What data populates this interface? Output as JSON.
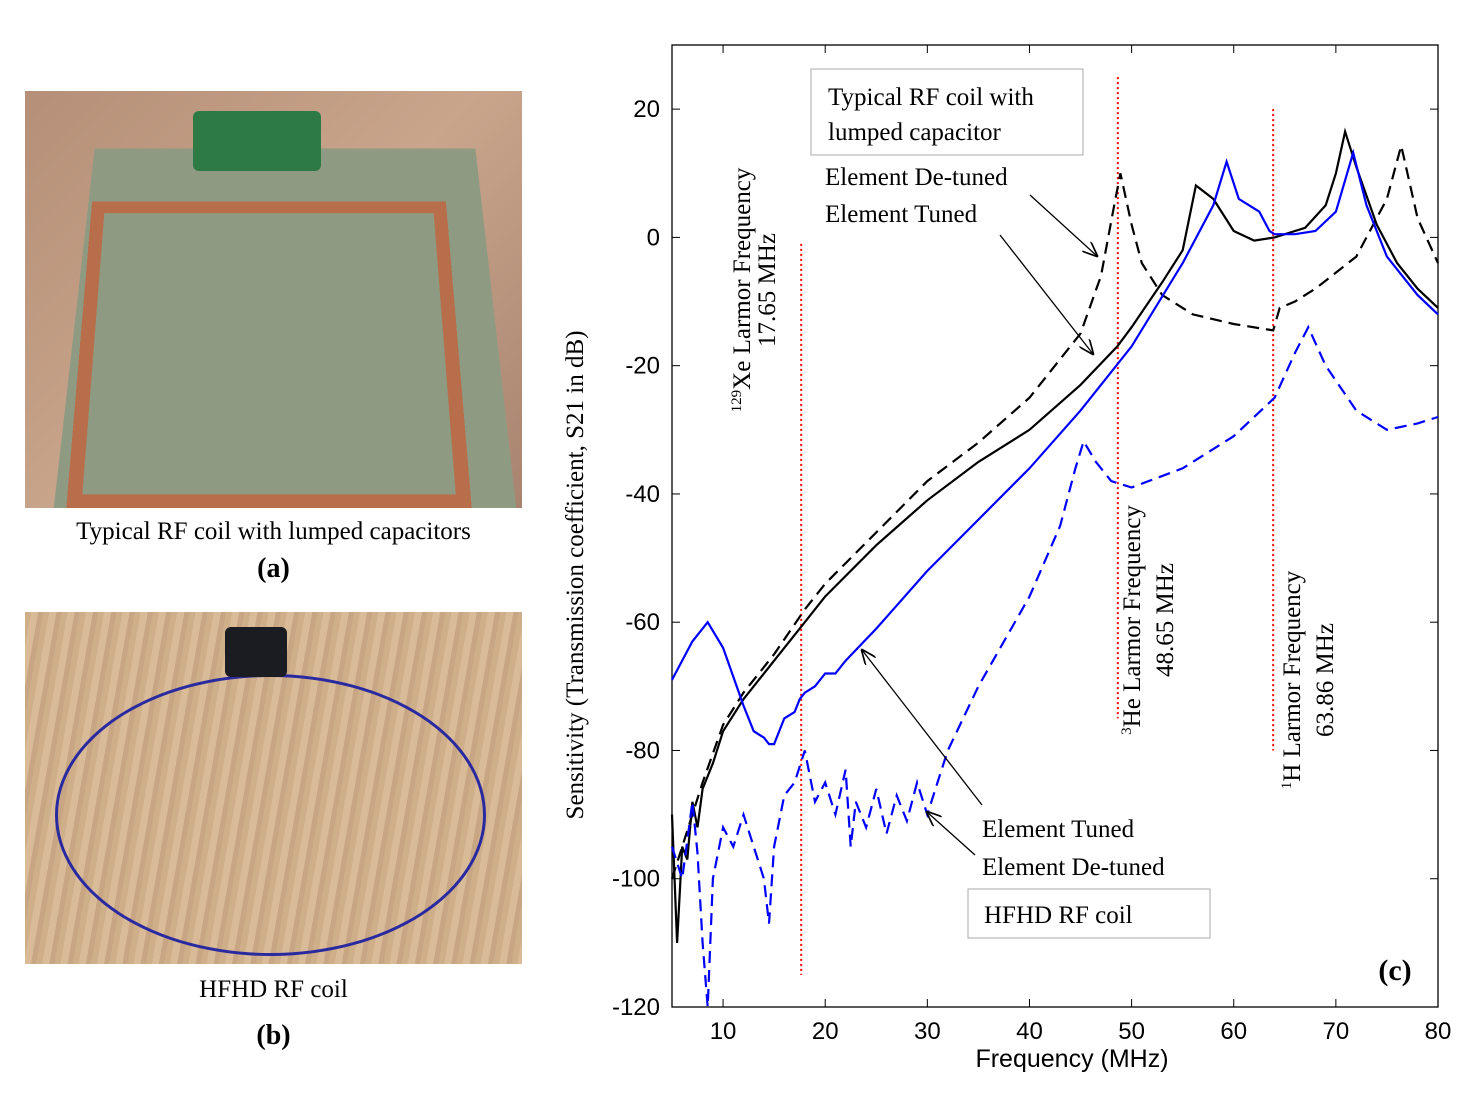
{
  "panel_a": {
    "caption": "Typical RF coil with lumped capacitors",
    "label": "(a)"
  },
  "panel_b": {
    "caption": "HFHD RF coil",
    "label": "(b)"
  },
  "chart_data": {
    "type": "line",
    "panel_label": "(c)",
    "xlabel": "Frequency  (MHz)",
    "ylabel": "Sensitivity (Transmission  coefficient,  S21 in dB)",
    "xlim": [
      5,
      80
    ],
    "ylim": [
      -120,
      30
    ],
    "xticks": [
      10,
      20,
      30,
      40,
      50,
      60,
      70,
      80
    ],
    "yticks": [
      20,
      0,
      -20,
      -40,
      -60,
      -80,
      -100,
      -120
    ],
    "colors": {
      "typical": "#000000",
      "hfhd": "#0000ff",
      "larmor": "#ff0000"
    },
    "series": [
      {
        "name": "Typical RF coil - Element Tuned",
        "color": "#000000",
        "dash": false,
        "x": [
          5,
          5.5,
          6,
          6.5,
          7,
          7.5,
          8,
          9,
          10,
          12,
          15,
          18,
          20,
          25,
          30,
          35,
          40,
          45,
          48.6,
          50,
          53,
          55,
          56.3,
          58,
          60,
          62,
          64,
          67,
          69,
          70,
          70.9,
          72,
          74,
          76,
          78,
          80
        ],
        "y": [
          -90,
          -110,
          -95,
          -97,
          -88,
          -92,
          -86,
          -82,
          -77,
          -72,
          -66,
          -60,
          -56,
          -48,
          -41,
          -35,
          -30,
          -23,
          -17,
          -14,
          -7,
          -2,
          8.1,
          6,
          1,
          -0.5,
          0,
          1.5,
          5,
          10,
          16.5,
          11,
          2,
          -4,
          -8,
          -11
        ]
      },
      {
        "name": "Typical RF coil - Element De-tuned",
        "color": "#000000",
        "dash": true,
        "x": [
          5,
          6,
          7,
          8,
          10,
          12,
          15,
          18,
          20,
          25,
          30,
          35,
          40,
          45,
          47,
          48.3,
          48.9,
          50,
          51,
          53,
          56,
          60,
          63.86,
          64.5,
          66,
          68,
          72,
          75,
          76.4,
          78,
          80
        ],
        "y": [
          -100,
          -95,
          -90,
          -85,
          -76,
          -71,
          -65,
          -58,
          -54,
          -46,
          -38,
          -32,
          -25,
          -15,
          -6,
          5,
          10,
          2,
          -4,
          -9,
          -12,
          -13.5,
          -14.5,
          -11,
          -10,
          -8,
          -3,
          6,
          14.3,
          3,
          -4
        ]
      },
      {
        "name": "HFHD RF coil - Element Tuned",
        "color": "#0000ff",
        "dash": false,
        "x": [
          5,
          7,
          8.5,
          10,
          12,
          13,
          14,
          14.5,
          15,
          16,
          17,
          17.5,
          18,
          19,
          20,
          21,
          22,
          25,
          30,
          35,
          40,
          45,
          50,
          55,
          58,
          59.3,
          60.5,
          61.5,
          62.5,
          63.5,
          64,
          66,
          68,
          70,
          71.7,
          73,
          75,
          78,
          80
        ],
        "y": [
          -69,
          -63,
          -60,
          -64,
          -73,
          -77,
          -78,
          -79,
          -79,
          -75,
          -74,
          -72,
          -71,
          -70,
          -68,
          -68,
          -66,
          -61,
          -52,
          -44,
          -36,
          -27,
          -17,
          -4,
          5,
          11.8,
          6,
          5,
          4,
          1,
          0.5,
          0.5,
          1,
          4,
          13.2,
          5,
          -3,
          -9,
          -12
        ]
      },
      {
        "name": "HFHD RF coil - Element De-tuned",
        "color": "#0000ff",
        "dash": true,
        "x": [
          5,
          6,
          7,
          7.5,
          8,
          8.5,
          9,
          10,
          11,
          12,
          13,
          14,
          14.5,
          15,
          16,
          17,
          18,
          19,
          20,
          21,
          22,
          22.5,
          23,
          24,
          25,
          26,
          27,
          28,
          29,
          30,
          31,
          32,
          35,
          40,
          43,
          44.5,
          45.3,
          46.5,
          48,
          50,
          55,
          60,
          64,
          66,
          67.3,
          69,
          72,
          75,
          78,
          80
        ],
        "y": [
          -95,
          -100,
          -88,
          -96,
          -110,
          -120,
          -100,
          -92,
          -95,
          -90,
          -95,
          -100,
          -107,
          -95,
          -87,
          -85,
          -80,
          -88,
          -85,
          -90,
          -83,
          -95,
          -88,
          -92,
          -86,
          -93,
          -87,
          -91,
          -85,
          -90,
          -85,
          -80,
          -70,
          -56,
          -45,
          -36,
          -31.8,
          -35,
          -38,
          -39,
          -36,
          -31,
          -25,
          -18,
          -14,
          -20,
          -27,
          -30,
          -29,
          -28
        ]
      }
    ],
    "vlines": [
      {
        "x": 17.65,
        "y_range": [
          -1,
          -115
        ],
        "label_top": "Xe Larmor  Frequency",
        "sup": "129",
        "label_mhz": "17.65 MHz"
      },
      {
        "x": 48.65,
        "y_range": [
          25,
          -75
        ],
        "label_top": "He Larmor  Frequency",
        "sup": "3",
        "label_mhz": "48.65 MHz"
      },
      {
        "x": 63.86,
        "y_range": [
          20,
          -80
        ],
        "label_top": "H Larmor  Frequency",
        "sup": "1",
        "label_mhz": "63.86 MHz"
      }
    ],
    "annotations": {
      "typical_box": [
        "Typical RF coil with",
        "lumped capacitor"
      ],
      "typical_detuned": "Element De-tuned",
      "typical_tuned": "Element Tuned",
      "hfhd_tuned": "Element Tuned",
      "hfhd_detuned": "Element De-tuned",
      "hfhd_box": "HFHD RF coil"
    }
  }
}
